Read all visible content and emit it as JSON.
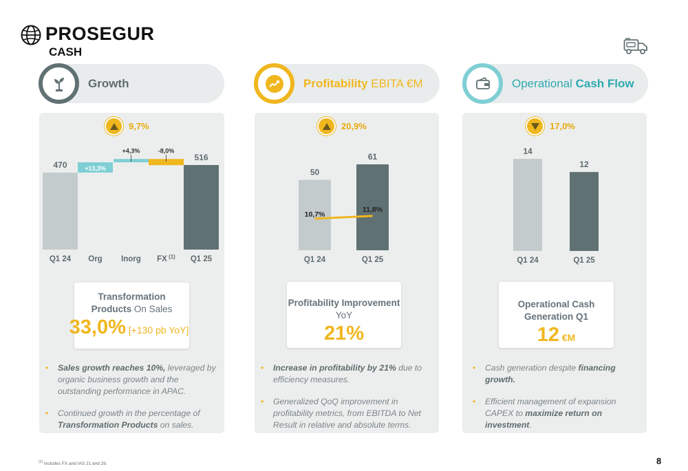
{
  "logo": {
    "line1": "PROSEGUR",
    "line2": "CASH"
  },
  "headers": {
    "growth": {
      "title": "Growth"
    },
    "profit": {
      "title_bold": "Profitability",
      "title_rest": " EBITA €M"
    },
    "cash": {
      "title_rest": "Operational ",
      "title_bold": "Cash Flow"
    }
  },
  "badges": {
    "growth": "9,7%",
    "profit": "20,9%",
    "cash": "17,0%"
  },
  "chart_data": [
    {
      "type": "bar",
      "subtype": "waterfall",
      "categories": [
        "Q1 24",
        "Org",
        "Inorg",
        "FX",
        "Q1 25"
      ],
      "values": [
        470,
        62.5,
        20.2,
        -37.6,
        516
      ],
      "labels": [
        "470",
        "+13,3%",
        "+4,3%",
        "-8,0%",
        "516"
      ],
      "fx_superscript": "(1)"
    },
    {
      "type": "bar",
      "categories": [
        "Q1 24",
        "Q1 25"
      ],
      "values": [
        50,
        61
      ],
      "line": {
        "values": [
          10.7,
          11.8
        ],
        "labels": [
          "10,7%",
          "11,8%"
        ]
      }
    },
    {
      "type": "bar",
      "categories": [
        "Q1 24",
        "Q1 25"
      ],
      "values": [
        14,
        12
      ]
    }
  ],
  "boxes": {
    "growth": {
      "line1": "Transformation",
      "line2_bold": "Products",
      "line2_rest": " On Sales",
      "big": "33,0%",
      "small": " [+130 pb YoY]"
    },
    "profit": {
      "line1": "Profitability Improvement",
      "line2": "YoY",
      "big": "21%"
    },
    "cash": {
      "line1": "Operational Cash",
      "line2": "Generation Q1",
      "big": "12",
      "unit": " €M"
    }
  },
  "bullets": {
    "growth": [
      {
        "bold": "Sales growth reaches 10%,",
        "rest": " leveraged by organic business growth and the outstanding performance in APAC."
      },
      {
        "pre": "Continued growth in the percentage of ",
        "bold": "Transformation Products",
        "rest": " on sales."
      }
    ],
    "profit": [
      {
        "bold": "Increase in profitability by 21%",
        "rest": " due to efficiency measures."
      },
      {
        "pre": "Generalized QoQ improvement in profitability metrics, from EBITDA to Net Result in relative and absolute terms.",
        "bold": "",
        "rest": ""
      }
    ],
    "cash": [
      {
        "pre": "Cash generation despite ",
        "bold": "financing growth.",
        "rest": ""
      },
      {
        "pre": "Efficient management of expansion CAPEX to ",
        "bold": "maximize return on investment",
        "rest": "."
      }
    ]
  },
  "footnote_sup": "(1)",
  "footnote": " Includes FX and IAS 21 and 29.",
  "page_number": "8",
  "colors": {
    "light_bar": "#c3cbcc",
    "dark_bar": "#607173",
    "teal": "#7ecfd4",
    "yellow": "#f0b61e",
    "header_bg": "#e9ecec",
    "card_bg": "#eceeee"
  }
}
